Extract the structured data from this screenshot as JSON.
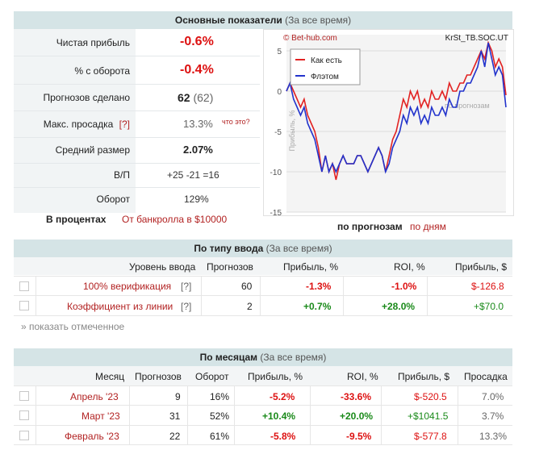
{
  "summary": {
    "header_title": "Основные показатели",
    "header_sub": "(За все время)",
    "rows": [
      {
        "label": "Чистая прибыль",
        "value": "-0.6%"
      },
      {
        "label": "% с оборота",
        "value": "-0.4%"
      },
      {
        "label": "Прогнозов сделано",
        "value": "62",
        "extra": "(62)"
      },
      {
        "label": "Макс. просадка",
        "help": "[?]",
        "value": "13.3%",
        "extra": "что это?"
      },
      {
        "label": "Средний размер",
        "value": "2.07%"
      },
      {
        "label": "В/П",
        "value": "+25 -21 =16"
      },
      {
        "label": "Оборот",
        "value": "129%"
      }
    ],
    "percent_label": "В процентах",
    "percent_link": "От банкролла в $10000"
  },
  "chart_data": {
    "type": "line",
    "title": "KrSt_TB.SOC.UT",
    "watermark": "© Bet-hub.com",
    "ylabel": "Прибыль, %",
    "xlabel": "по прогнозам",
    "ylim": [
      -15,
      7
    ],
    "yticks": [
      "5",
      "0",
      "-5",
      "-10",
      "-15"
    ],
    "x": [
      0,
      1,
      2,
      3,
      4,
      5,
      6,
      7,
      8,
      9,
      10,
      11,
      12,
      13,
      14,
      15,
      16,
      17,
      18,
      19,
      20,
      21,
      22,
      23,
      24,
      25,
      26,
      27,
      28,
      29,
      30,
      31,
      32,
      33,
      34,
      35,
      36,
      37,
      38,
      39,
      40,
      41,
      42,
      43,
      44,
      45,
      46,
      47,
      48,
      49,
      50,
      51,
      52,
      53,
      54,
      55,
      56,
      57,
      58,
      59,
      60,
      61,
      62
    ],
    "series": [
      {
        "name": "Как есть",
        "color": "#e22222",
        "values": [
          0,
          1,
          0,
          -1,
          -2,
          -1,
          -3,
          -4,
          -5,
          -7,
          -10,
          -8,
          -10,
          -9,
          -11,
          -9,
          -8,
          -9,
          -9,
          -9,
          -8,
          -8,
          -9,
          -10,
          -9,
          -8,
          -7,
          -8,
          -10,
          -8,
          -6,
          -5,
          -3,
          -1,
          -2,
          0,
          -1,
          0,
          -2,
          -1,
          -2,
          0,
          -1,
          -1,
          0,
          -1,
          1,
          0,
          0,
          1,
          1,
          2,
          2,
          3,
          4,
          5,
          4,
          6,
          5,
          3,
          4,
          3,
          -0.5
        ]
      },
      {
        "name": "Флэтом",
        "color": "#2233cc",
        "values": [
          0,
          1,
          -1,
          -2,
          -3,
          -2,
          -4,
          -5,
          -6,
          -8,
          -10,
          -8,
          -10,
          -9,
          -10,
          -9,
          -8,
          -9,
          -9,
          -9,
          -8,
          -8,
          -9,
          -10,
          -9,
          -8,
          -7,
          -8,
          -10,
          -9,
          -7,
          -6,
          -5,
          -3,
          -4,
          -2,
          -3,
          -2,
          -4,
          -3,
          -4,
          -2,
          -3,
          -3,
          -2,
          -3,
          -1,
          -2,
          -2,
          0,
          0,
          1,
          1,
          2,
          3,
          5,
          3,
          6,
          4,
          2,
          3,
          2,
          -2
        ]
      }
    ],
    "annotation": "по прогнозам",
    "footer_active": "по прогнозам",
    "footer_link": "по дням"
  },
  "by_type": {
    "header_title": "По типу ввода",
    "header_sub": "(За все время)",
    "columns": [
      "Уровень ввода",
      "Прогнозов",
      "Прибыль, %",
      "ROI, %",
      "Прибыль, $"
    ],
    "rows": [
      {
        "name": "100% верификация",
        "help": "[?]",
        "count": "60",
        "profit_pct": "-1.3%",
        "roi": "-1.0%",
        "profit_usd": "$-126.8"
      },
      {
        "name": "Коэффициент из линии",
        "help": "[?]",
        "count": "2",
        "profit_pct": "+0.7%",
        "roi": "+28.0%",
        "profit_usd": "+$70.0"
      }
    ],
    "show_marked": "» показать отмеченное"
  },
  "by_month": {
    "header_title": "По месяцам",
    "header_sub": "(За все время)",
    "columns": [
      "Месяц",
      "Прогнозов",
      "Оборот",
      "Прибыль, %",
      "ROI, %",
      "Прибыль, $",
      "Просадка"
    ],
    "rows": [
      {
        "month": "Апрель '23",
        "count": "9",
        "turnover": "16%",
        "profit_pct": "-5.2%",
        "roi": "-33.6%",
        "profit_usd": "$-520.5",
        "drawdown": "7.0%"
      },
      {
        "month": "Март '23",
        "count": "31",
        "turnover": "52%",
        "profit_pct": "+10.4%",
        "roi": "+20.0%",
        "profit_usd": "+$1041.5",
        "drawdown": "3.7%"
      },
      {
        "month": "Февраль '23",
        "count": "22",
        "turnover": "61%",
        "profit_pct": "-5.8%",
        "roi": "-9.5%",
        "profit_usd": "$-577.8",
        "drawdown": "13.3%"
      }
    ]
  },
  "colors": {
    "header_bg": "#d5e4e6",
    "positive": "#1a8a1a",
    "negative": "#d11111",
    "link": "#b22222"
  }
}
